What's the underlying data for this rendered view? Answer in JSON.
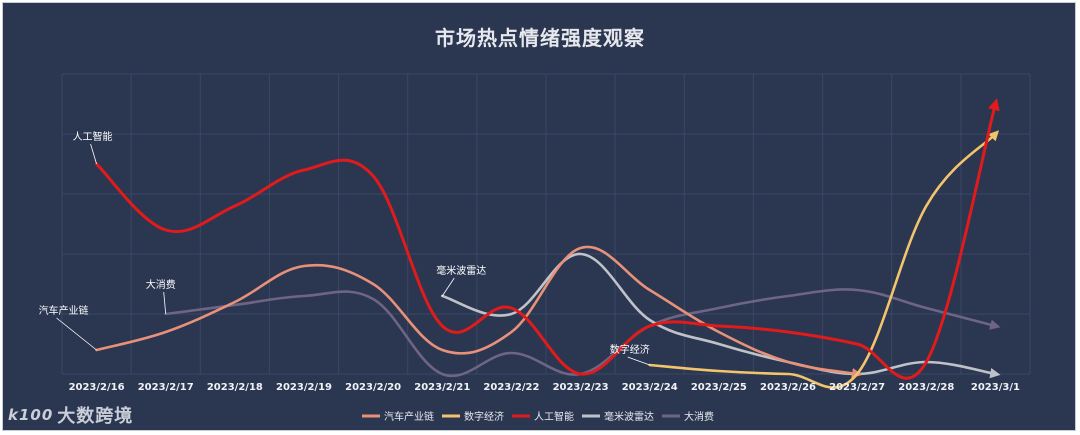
{
  "title": "市场热点情绪强度观察",
  "watermark": {
    "logo": "k100",
    "text": "大数跨境"
  },
  "colors": {
    "background": "#2b3650",
    "grid": "#3a4766",
    "汽车产业链": "#e8917a",
    "数字经济": "#f2c46c",
    "人工智能": "#e11b1b",
    "毫米波雷达": "#bfc2c8",
    "大消费": "#6e6584"
  },
  "chart_data": {
    "type": "line",
    "title": "市场热点情绪强度观察",
    "x": [
      "2023/2/16",
      "2023/2/17",
      "2023/2/18",
      "2023/2/19",
      "2023/2/20",
      "2023/2/21",
      "2023/2/22",
      "2023/2/23",
      "2023/2/24",
      "2023/2/25",
      "2023/2/26",
      "2023/2/27",
      "2023/2/28",
      "2023/3/1"
    ],
    "ylim": [
      0,
      5
    ],
    "grid": true,
    "legend_position": "bottom-center",
    "series": [
      {
        "name": "汽车产业链",
        "values": [
          0.4,
          0.7,
          1.2,
          1.8,
          1.5,
          0.4,
          0.7,
          2.1,
          1.4,
          0.7,
          0.2,
          0.0,
          null,
          null
        ]
      },
      {
        "name": "数字经济",
        "values": [
          null,
          null,
          null,
          null,
          null,
          null,
          null,
          null,
          0.15,
          0.05,
          0.0,
          0.0,
          2.8,
          4.0
        ]
      },
      {
        "name": "人工智能",
        "values": [
          3.5,
          2.4,
          2.8,
          3.4,
          3.3,
          0.8,
          1.1,
          0.0,
          0.8,
          0.8,
          0.7,
          0.5,
          0.2,
          4.5
        ]
      },
      {
        "name": "毫米波雷达",
        "values": [
          null,
          null,
          null,
          null,
          null,
          1.3,
          1.0,
          2.0,
          0.9,
          0.5,
          0.2,
          0.0,
          0.2,
          0.0
        ]
      },
      {
        "name": "大消费",
        "values": [
          null,
          1.0,
          1.15,
          1.3,
          1.25,
          0.0,
          0.35,
          0.0,
          0.8,
          1.1,
          1.3,
          1.4,
          1.1,
          0.8
        ]
      }
    ],
    "annotations": [
      {
        "text": "人工智能",
        "x": "2023/2/16",
        "series": "人工智能"
      },
      {
        "text": "大消费",
        "x": "2023/2/17",
        "series": "大消费"
      },
      {
        "text": "汽车产业链",
        "x": "2023/2/16",
        "series": "汽车产业链"
      },
      {
        "text": "毫米波雷达",
        "x": "2023/2/21",
        "series": "毫米波雷达"
      },
      {
        "text": "数字经济",
        "x": "2023/2/24",
        "series": "数字经济"
      }
    ]
  }
}
